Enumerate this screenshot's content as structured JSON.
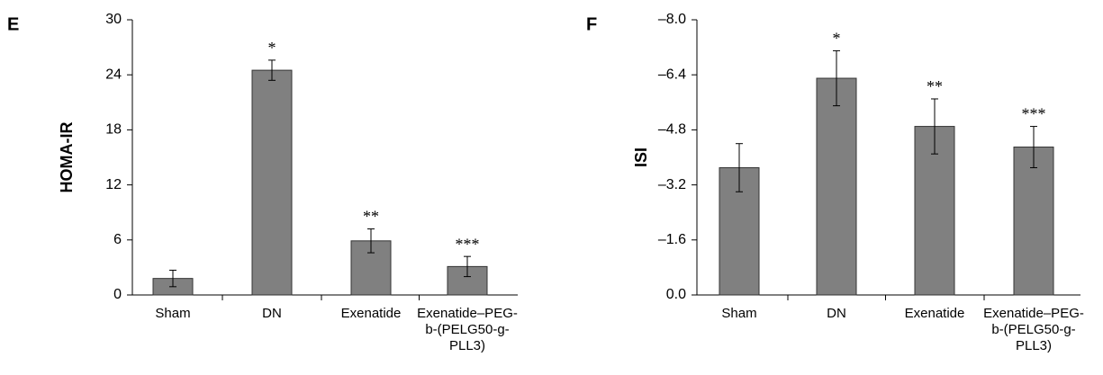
{
  "chart_data": [
    {
      "type": "bar",
      "panel": "E",
      "ylabel": "HOMA-IR",
      "categories": [
        "Sham",
        "DN",
        "Exenatide",
        "Exenatide–PEG-b-(PELG50-g-PLL3)"
      ],
      "values": [
        1.8,
        24.5,
        5.9,
        3.1
      ],
      "errors": [
        0.9,
        1.1,
        1.3,
        1.1
      ],
      "annotations": [
        null,
        "*",
        "**",
        "***"
      ],
      "color": "#808080",
      "ylim": [
        0,
        30
      ],
      "yticks": [
        0,
        6,
        12,
        18,
        24,
        30
      ]
    },
    {
      "type": "bar",
      "panel": "F",
      "ylabel": "ISI",
      "categories": [
        "Sham",
        "DN",
        "Exenatide",
        "Exenatide–PEG-b-(PELG50-g-PLL3)"
      ],
      "values": [
        -3.7,
        -6.3,
        -4.9,
        -4.3
      ],
      "errors": [
        0.7,
        0.8,
        0.8,
        0.6
      ],
      "annotations": [
        null,
        "*",
        "**",
        "***"
      ],
      "color": "#808080",
      "ylim": [
        0,
        -8
      ],
      "yticks": [
        {
          "value": 0,
          "label": "0.0"
        },
        {
          "value": -1.6,
          "label": "–1.6"
        },
        {
          "value": -3.2,
          "label": "–3.2"
        },
        {
          "value": -4.8,
          "label": "–4.8"
        },
        {
          "value": -6.4,
          "label": "–6.4"
        },
        {
          "value": -8,
          "label": "–8.0"
        }
      ]
    }
  ]
}
